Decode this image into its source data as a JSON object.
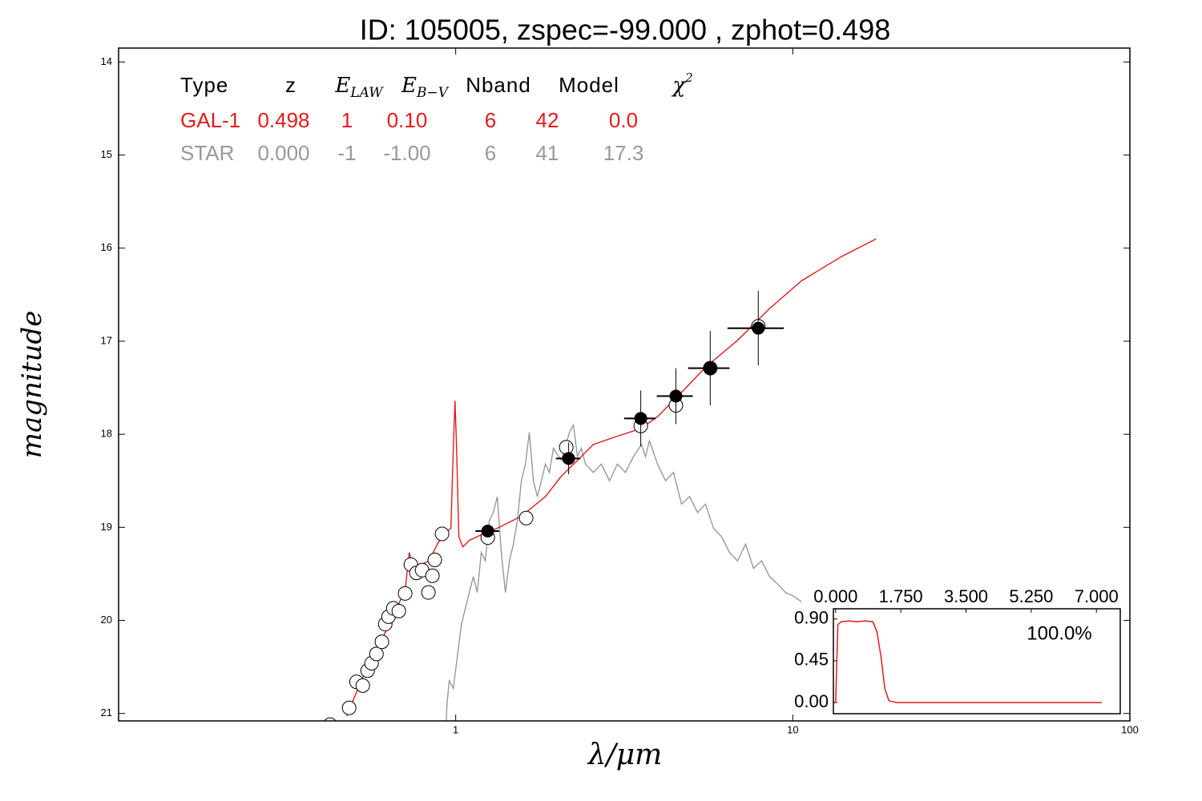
{
  "chart_data": [
    {
      "type": "sed",
      "title": "ID:  105005, zspec=-99.000 , zphot=0.498",
      "xlabel": "λ/μm",
      "ylabel": "magnitude",
      "xscale": "log",
      "xlim": [
        0.1,
        100
      ],
      "xticks": [
        1,
        10,
        100
      ],
      "ylim": [
        21.08,
        13.85
      ],
      "yticks": [
        14,
        15,
        16,
        17,
        18,
        19,
        20,
        21
      ],
      "table": {
        "header": [
          "Type",
          "z",
          {
            "base": "E",
            "sub": "LAW"
          },
          {
            "base": "E",
            "sub": "B−V"
          },
          "Nband",
          "Model",
          {
            "base": "χ",
            "sup": "2"
          }
        ],
        "rows": [
          {
            "color": "#e41a1c",
            "cells": [
              "GAL-1",
              "0.498",
              "1",
              "0.10",
              "6",
              "42",
              "0.0"
            ]
          },
          {
            "color": "#999999",
            "cells": [
              "STAR",
              "0.000",
              "-1",
              "-1.00",
              "6",
              "41",
              "17.3"
            ]
          }
        ]
      },
      "series": [
        {
          "kind": "line",
          "color": "#999999",
          "x": [
            0.935,
            0.942,
            0.957,
            0.984,
            1.011,
            1.039,
            1.068,
            1.097,
            1.128,
            1.159,
            1.191,
            1.224,
            1.258,
            1.293,
            1.329,
            1.366,
            1.404,
            1.443,
            1.483,
            1.524,
            1.566,
            1.61,
            1.654,
            1.7,
            1.747,
            1.796,
            1.845,
            1.897,
            1.949,
            2.059,
            2.175,
            2.235,
            2.297,
            2.36,
            2.426,
            2.562,
            2.706,
            2.858,
            3.018,
            3.188,
            3.368,
            3.557,
            3.656,
            3.757,
            3.968,
            4.192,
            4.427,
            4.676,
            4.939,
            5.217,
            5.508,
            5.82,
            6.147,
            6.493,
            6.855,
            7.244,
            7.648,
            8.08,
            8.534,
            9.015,
            9.519,
            10.06,
            10.62
          ],
          "values": [
            21.2,
            20.9,
            20.65,
            20.73,
            20.39,
            20.05,
            19.87,
            19.7,
            19.53,
            19.7,
            19.27,
            19.36,
            18.93,
            18.84,
            18.67,
            19.27,
            19.7,
            19.36,
            19.18,
            18.93,
            18.5,
            18.32,
            17.98,
            18.5,
            18.67,
            18.5,
            18.32,
            18.41,
            18.15,
            18.28,
            17.98,
            17.9,
            18.24,
            18.15,
            18.32,
            18.41,
            18.32,
            18.5,
            18.32,
            18.41,
            18.24,
            18.11,
            18.24,
            18.07,
            18.32,
            18.5,
            18.41,
            18.75,
            18.67,
            18.84,
            18.75,
            19.01,
            19.1,
            19.27,
            19.36,
            19.18,
            19.44,
            19.36,
            19.53,
            19.61,
            19.7,
            19.74,
            19.8
          ]
        },
        {
          "kind": "line",
          "color": "#e41a1c",
          "x": [
            0.475,
            0.524,
            0.585,
            0.653,
            0.709,
            0.728,
            0.748,
            0.79,
            0.835,
            0.882,
            0.931,
            0.968,
            0.984,
            0.995,
            1.006,
            1.022,
            1.05,
            1.097,
            1.191,
            1.329,
            1.566,
            1.845,
            2.059,
            2.297,
            2.562,
            3.018,
            3.538,
            3.97,
            4.676,
            5.51,
            6.86,
            8.53,
            10.62,
            13.96,
            17.66
          ],
          "values": [
            21.03,
            20.65,
            20.3,
            19.96,
            19.66,
            19.27,
            19.44,
            19.4,
            19.36,
            19.18,
            19.06,
            19.01,
            18.15,
            17.64,
            18.15,
            19.1,
            19.21,
            19.14,
            19.08,
            19.01,
            18.88,
            18.67,
            18.45,
            18.28,
            18.11,
            18.02,
            17.94,
            17.81,
            17.55,
            17.28,
            16.99,
            16.65,
            16.35,
            16.09,
            15.9
          ]
        },
        {
          "kind": "open",
          "color": "#000000",
          "x": [
            0.424,
            0.483,
            0.508,
            0.53,
            0.548,
            0.563,
            0.582,
            0.604,
            0.618,
            0.632,
            0.653,
            0.678,
            0.708,
            0.736,
            0.765,
            0.795,
            0.83,
            0.853,
            0.867,
            0.911,
            1.245,
            1.618,
            2.128,
            3.54,
            4.5,
            5.69,
            7.9
          ],
          "values": [
            21.12,
            20.94,
            20.66,
            20.7,
            20.54,
            20.46,
            20.36,
            20.23,
            20.04,
            19.96,
            19.87,
            19.9,
            19.71,
            19.4,
            19.49,
            19.46,
            19.7,
            19.52,
            19.35,
            19.07,
            19.11,
            18.9,
            18.14,
            17.91,
            17.69,
            17.29,
            16.84
          ]
        },
        {
          "kind": "filled",
          "color": "#000000",
          "x": [
            1.245,
            2.163,
            3.54,
            4.5,
            5.69,
            7.9
          ],
          "values": [
            19.04,
            18.26,
            17.83,
            17.59,
            17.29,
            16.86
          ],
          "xerr": [
            0.1,
            0.18,
            0.38,
            0.55,
            0.8,
            1.5
          ],
          "yerr": [
            0.05,
            0.17,
            0.3,
            0.3,
            0.4,
            0.4
          ]
        }
      ]
    },
    {
      "type": "line",
      "annotation": "100.0%",
      "xlim": [
        -0.06,
        7.64
      ],
      "xticks": [
        {
          "value": 0,
          "label": "0.000"
        },
        {
          "value": 1.75,
          "label": "1.750"
        },
        {
          "value": 3.5,
          "label": "3.500"
        },
        {
          "value": 5.25,
          "label": "5.250"
        },
        {
          "value": 7,
          "label": "7.000"
        }
      ],
      "ylim": [
        -0.12,
        1.01
      ],
      "yticks": [
        {
          "value": 0,
          "label": "0.00"
        },
        {
          "value": 0.45,
          "label": "0.45"
        },
        {
          "value": 0.9,
          "label": "0.90"
        }
      ],
      "series": [
        {
          "color": "#e41a1c",
          "x": [
            0,
            0.06,
            0.15,
            0.36,
            0.58,
            0.79,
            1.0,
            1.11,
            1.22,
            1.32,
            1.43,
            1.64,
            7.14
          ],
          "values": [
            0,
            0.84,
            0.87,
            0.88,
            0.87,
            0.88,
            0.87,
            0.76,
            0.49,
            0.15,
            0.02,
            0,
            0
          ]
        }
      ]
    }
  ]
}
